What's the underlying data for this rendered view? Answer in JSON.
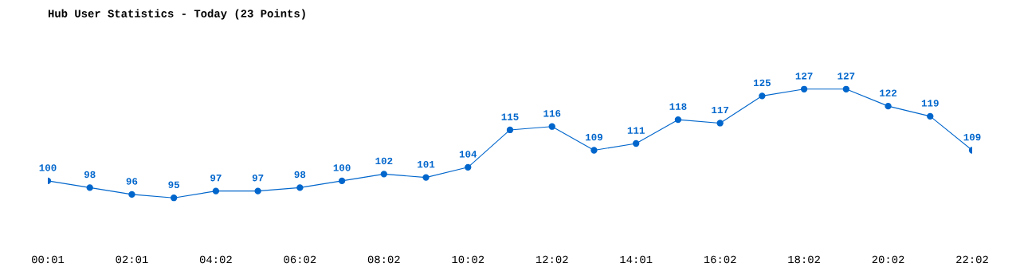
{
  "chart_data": {
    "type": "line",
    "title": "Hub User Statistics - Today (23 Points)",
    "categories": [
      "00:01",
      null,
      "02:01",
      null,
      "04:02",
      null,
      "06:02",
      null,
      "08:02",
      null,
      "10:02",
      null,
      "12:02",
      null,
      "14:01",
      null,
      "16:02",
      null,
      "18:02",
      null,
      "20:02",
      null,
      "22:02"
    ],
    "series": [
      {
        "color": "#0066cc",
        "values": [
          100,
          98,
          96,
          95,
          97,
          97,
          98,
          100,
          102,
          101,
          104,
          115,
          116,
          109,
          111,
          118,
          117,
          125,
          127,
          127,
          122,
          119,
          109
        ]
      }
    ],
    "data_labels": true,
    "marker": "circle",
    "line_style": "solid",
    "grid": false,
    "legend": false,
    "tick_labels": "x"
  }
}
